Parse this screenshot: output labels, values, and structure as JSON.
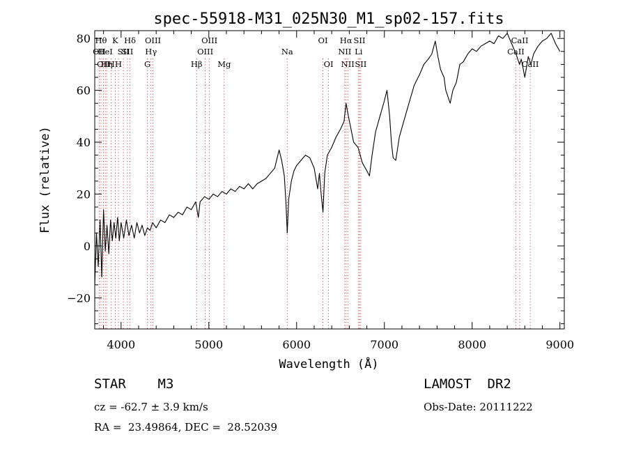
{
  "chart_data": {
    "type": "line",
    "title": "spec-55918-M31_025N30_M1_sp02-157.fits",
    "xlabel": "Wavelength (Å)",
    "ylabel": "Flux (relative)",
    "xlim": [
      3700,
      9050
    ],
    "ylim": [
      -32,
      83
    ],
    "xticks": [
      4000,
      5000,
      6000,
      7000,
      8000,
      9000
    ],
    "yticks": [
      -20,
      0,
      20,
      40,
      60,
      80
    ],
    "grid": false,
    "series": [
      {
        "color": "#000000",
        "points": [
          [
            3700,
            -15
          ],
          [
            3720,
            5
          ],
          [
            3740,
            -8
          ],
          [
            3760,
            10
          ],
          [
            3780,
            -12
          ],
          [
            3800,
            14
          ],
          [
            3820,
            -2
          ],
          [
            3840,
            8
          ],
          [
            3860,
            -3
          ],
          [
            3880,
            10
          ],
          [
            3900,
            2
          ],
          [
            3920,
            9
          ],
          [
            3940,
            3
          ],
          [
            3960,
            11
          ],
          [
            3980,
            2
          ],
          [
            4000,
            9
          ],
          [
            4030,
            3
          ],
          [
            4060,
            10
          ],
          [
            4090,
            4
          ],
          [
            4120,
            8
          ],
          [
            4150,
            3
          ],
          [
            4180,
            9
          ],
          [
            4210,
            5
          ],
          [
            4240,
            8
          ],
          [
            4270,
            4
          ],
          [
            4300,
            7
          ],
          [
            4330,
            6
          ],
          [
            4360,
            9
          ],
          [
            4400,
            7
          ],
          [
            4450,
            10
          ],
          [
            4500,
            9
          ],
          [
            4550,
            12
          ],
          [
            4600,
            11
          ],
          [
            4650,
            13
          ],
          [
            4700,
            12
          ],
          [
            4750,
            15
          ],
          [
            4800,
            14
          ],
          [
            4850,
            17
          ],
          [
            4880,
            11
          ],
          [
            4900,
            17
          ],
          [
            4950,
            19
          ],
          [
            5000,
            18
          ],
          [
            5050,
            20
          ],
          [
            5100,
            19
          ],
          [
            5150,
            21
          ],
          [
            5200,
            20
          ],
          [
            5250,
            22
          ],
          [
            5300,
            21
          ],
          [
            5350,
            23
          ],
          [
            5400,
            22
          ],
          [
            5450,
            24
          ],
          [
            5500,
            22
          ],
          [
            5550,
            24
          ],
          [
            5600,
            25
          ],
          [
            5650,
            26
          ],
          [
            5700,
            28
          ],
          [
            5750,
            30
          ],
          [
            5800,
            37
          ],
          [
            5830,
            33
          ],
          [
            5860,
            27
          ],
          [
            5880,
            16
          ],
          [
            5893,
            5
          ],
          [
            5910,
            18
          ],
          [
            5940,
            25
          ],
          [
            5970,
            29
          ],
          [
            6000,
            31
          ],
          [
            6050,
            33
          ],
          [
            6100,
            35
          ],
          [
            6150,
            34
          ],
          [
            6200,
            30
          ],
          [
            6240,
            22
          ],
          [
            6260,
            28
          ],
          [
            6280,
            20
          ],
          [
            6300,
            13
          ],
          [
            6320,
            28
          ],
          [
            6350,
            35
          ],
          [
            6400,
            38
          ],
          [
            6450,
            42
          ],
          [
            6500,
            45
          ],
          [
            6540,
            48
          ],
          [
            6563,
            55
          ],
          [
            6590,
            50
          ],
          [
            6620,
            45
          ],
          [
            6650,
            40
          ],
          [
            6700,
            38
          ],
          [
            6750,
            32
          ],
          [
            6800,
            29
          ],
          [
            6830,
            27
          ],
          [
            6860,
            35
          ],
          [
            6900,
            44
          ],
          [
            6950,
            50
          ],
          [
            7000,
            56
          ],
          [
            7030,
            60
          ],
          [
            7060,
            50
          ],
          [
            7080,
            40
          ],
          [
            7100,
            34
          ],
          [
            7130,
            33
          ],
          [
            7170,
            42
          ],
          [
            7220,
            48
          ],
          [
            7280,
            55
          ],
          [
            7340,
            62
          ],
          [
            7400,
            66
          ],
          [
            7450,
            70
          ],
          [
            7500,
            72
          ],
          [
            7540,
            74
          ],
          [
            7580,
            79
          ],
          [
            7610,
            73
          ],
          [
            7640,
            68
          ],
          [
            7680,
            65
          ],
          [
            7700,
            60
          ],
          [
            7730,
            57
          ],
          [
            7750,
            55
          ],
          [
            7780,
            60
          ],
          [
            7820,
            63
          ],
          [
            7860,
            70
          ],
          [
            7900,
            71
          ],
          [
            7950,
            74
          ],
          [
            8000,
            76
          ],
          [
            8050,
            75
          ],
          [
            8100,
            77
          ],
          [
            8150,
            78
          ],
          [
            8200,
            79
          ],
          [
            8250,
            78
          ],
          [
            8300,
            81
          ],
          [
            8350,
            80
          ],
          [
            8400,
            82
          ],
          [
            8450,
            78
          ],
          [
            8500,
            74
          ],
          [
            8540,
            70
          ],
          [
            8560,
            72
          ],
          [
            8600,
            65
          ],
          [
            8640,
            73
          ],
          [
            8670,
            70
          ],
          [
            8700,
            74
          ],
          [
            8750,
            77
          ],
          [
            8800,
            79
          ],
          [
            8850,
            80
          ],
          [
            8900,
            82
          ],
          [
            8950,
            78
          ],
          [
            9000,
            75
          ]
        ]
      }
    ],
    "line_markers": [
      {
        "w": 3751,
        "label": "OII",
        "row": 1
      },
      {
        "w": 3771,
        "label": "Hθ",
        "row": 0
      },
      {
        "w": 3798,
        "label": "OII",
        "row": 2
      },
      {
        "w": 3820,
        "label": "HeI",
        "row": 1
      },
      {
        "w": 3836,
        "label": "Hη",
        "row": 2
      },
      {
        "w": 3889,
        "label": "H",
        "row": 2
      },
      {
        "w": 3934,
        "label": "K",
        "row": 0
      },
      {
        "w": 3970,
        "label": "H",
        "row": 2
      },
      {
        "w": 4026,
        "label": "SII",
        "row": 1
      },
      {
        "w": 4072,
        "label": "SII",
        "row": 1
      },
      {
        "w": 4102,
        "label": "Hδ",
        "row": 0
      },
      {
        "w": 4300,
        "label": "G",
        "row": 2
      },
      {
        "w": 4341,
        "label": "Hγ",
        "row": 1
      },
      {
        "w": 4363,
        "label": "OIII",
        "row": 0
      },
      {
        "w": 4861,
        "label": "Hβ",
        "row": 2
      },
      {
        "w": 4959,
        "label": "OIII",
        "row": 1
      },
      {
        "w": 5007,
        "label": "OIII",
        "row": 0
      },
      {
        "w": 5175,
        "label": "Mg",
        "row": 2
      },
      {
        "w": 5893,
        "label": "Na",
        "row": 1
      },
      {
        "w": 6300,
        "label": "OI",
        "row": 0
      },
      {
        "w": 6364,
        "label": "OI",
        "row": 2
      },
      {
        "w": 6548,
        "label": "NII",
        "row": 1
      },
      {
        "w": 6563,
        "label": "Hα",
        "row": 0
      },
      {
        "w": 6583,
        "label": "NII",
        "row": 2
      },
      {
        "w": 6707,
        "label": "Li",
        "row": 1
      },
      {
        "w": 6716,
        "label": "SII",
        "row": 0
      },
      {
        "w": 6731,
        "label": "SII",
        "row": 2
      },
      {
        "w": 8498,
        "label": "CaII",
        "row": 1
      },
      {
        "w": 8542,
        "label": "CaII",
        "row": 0
      },
      {
        "w": 8662,
        "label": "CaII",
        "row": 2
      }
    ]
  },
  "info": {
    "object_class": "STAR    M3",
    "survey": "LAMOST  DR2",
    "redshift": "cz = -62.7 ± 3.9 km/s",
    "obs_date": "Obs-Date: 20111222",
    "coords": "RA =  23.49864, DEC =  28.52039"
  }
}
